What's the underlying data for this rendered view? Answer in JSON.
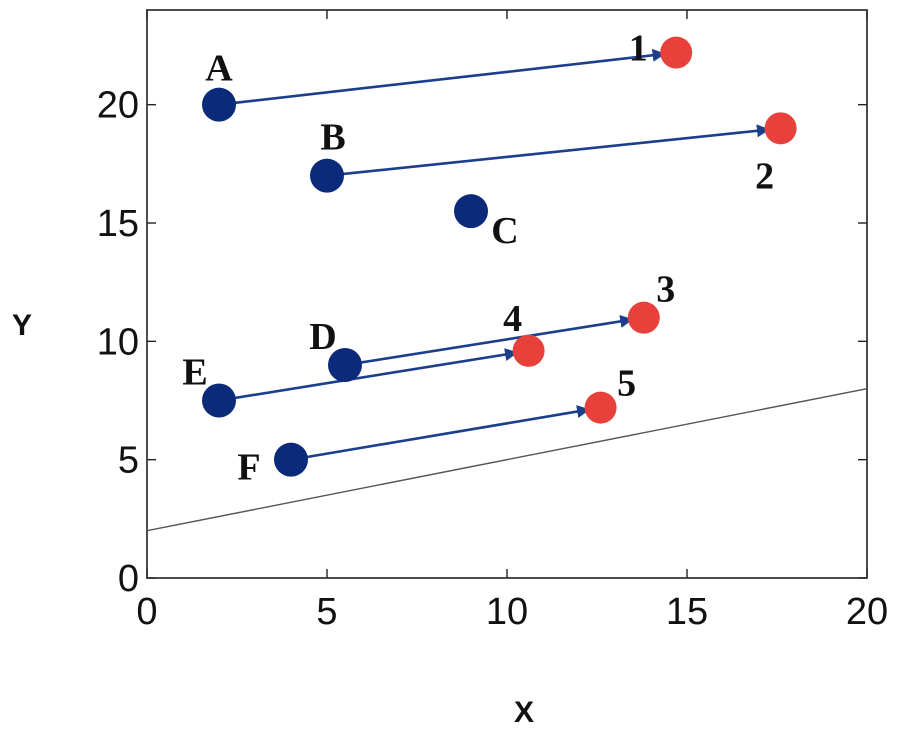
{
  "chart_data": {
    "type": "scatter",
    "title": "",
    "xlabel": "X",
    "ylabel": "Y",
    "xlim": [
      0,
      20
    ],
    "ylim": [
      0,
      24
    ],
    "x_ticks": [
      "0",
      "5",
      "10",
      "15",
      "20"
    ],
    "y_ticks": [
      "0",
      "5",
      "10",
      "15",
      "20"
    ],
    "x_tick_values": [
      0,
      5,
      10,
      15,
      20
    ],
    "y_tick_values": [
      0,
      5,
      10,
      15,
      20
    ],
    "grid": false,
    "legend": "none",
    "colors": {
      "source": "#0b2a7a",
      "target": "#e8413b",
      "arrow": "#1b3f8c",
      "line": "#555555"
    },
    "sources": [
      {
        "label": "A",
        "x": 2.0,
        "y": 20.0
      },
      {
        "label": "B",
        "x": 5.0,
        "y": 17.0
      },
      {
        "label": "C",
        "x": 9.0,
        "y": 15.5
      },
      {
        "label": "D",
        "x": 5.5,
        "y": 9.0
      },
      {
        "label": "E",
        "x": 2.0,
        "y": 7.5
      },
      {
        "label": "F",
        "x": 4.0,
        "y": 5.0
      }
    ],
    "targets": [
      {
        "label": "1",
        "x": 14.7,
        "y": 22.2
      },
      {
        "label": "2",
        "x": 17.6,
        "y": 19.0
      },
      {
        "label": "3",
        "x": 13.8,
        "y": 11.0
      },
      {
        "label": "4",
        "x": 10.6,
        "y": 9.6
      },
      {
        "label": "5",
        "x": 12.6,
        "y": 7.2
      }
    ],
    "arrows": [
      {
        "from": "A",
        "to": "1"
      },
      {
        "from": "B",
        "to": "2"
      },
      {
        "from": "D",
        "to": "3"
      },
      {
        "from": "E",
        "to": "4"
      },
      {
        "from": "F",
        "to": "5"
      }
    ],
    "reference_line": {
      "x": [
        0,
        20
      ],
      "y": [
        2.0,
        8.0
      ]
    }
  }
}
